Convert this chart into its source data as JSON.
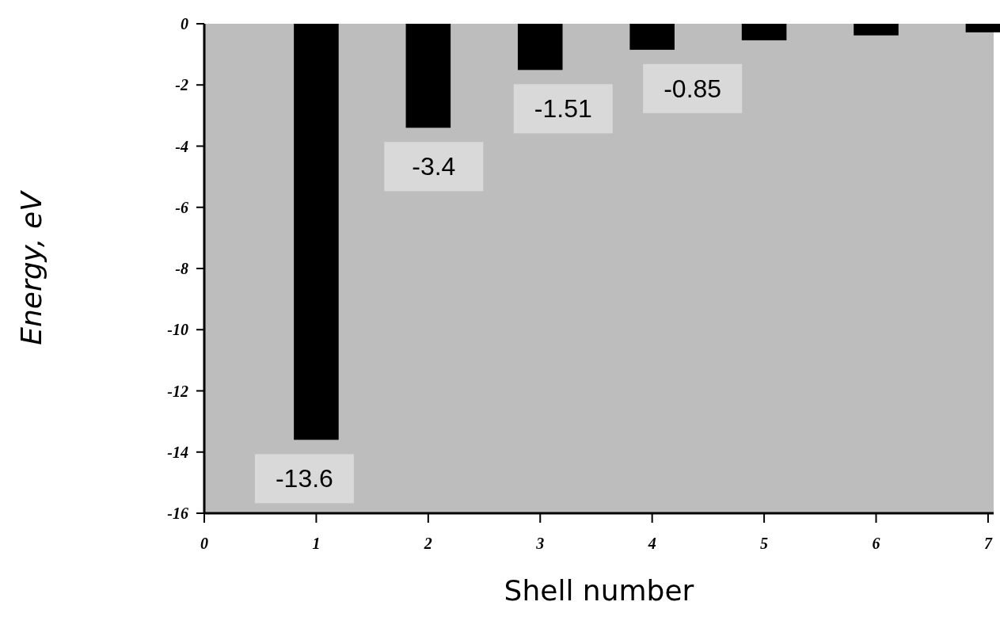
{
  "chart_data": {
    "type": "bar",
    "xlabel": "Shell number",
    "ylabel": "Energy, eV",
    "x": [
      1,
      2,
      3,
      4,
      5,
      6,
      7
    ],
    "values": [
      -13.6,
      -3.4,
      -1.51,
      -0.85,
      -0.54,
      -0.38,
      -0.28
    ],
    "value_labels": [
      "-13.6",
      "-3.4",
      "-1.51",
      "-0.85",
      null,
      null,
      null
    ],
    "color": "#000000",
    "xlim": [
      0,
      7.05
    ],
    "xticks": [
      0,
      1,
      2,
      3,
      4,
      5,
      6,
      7
    ],
    "ylim": [
      -16,
      0
    ],
    "yticks": [
      0,
      -2,
      -4,
      -6,
      -8,
      -10,
      -12,
      -14,
      -16
    ],
    "grid": false
  }
}
